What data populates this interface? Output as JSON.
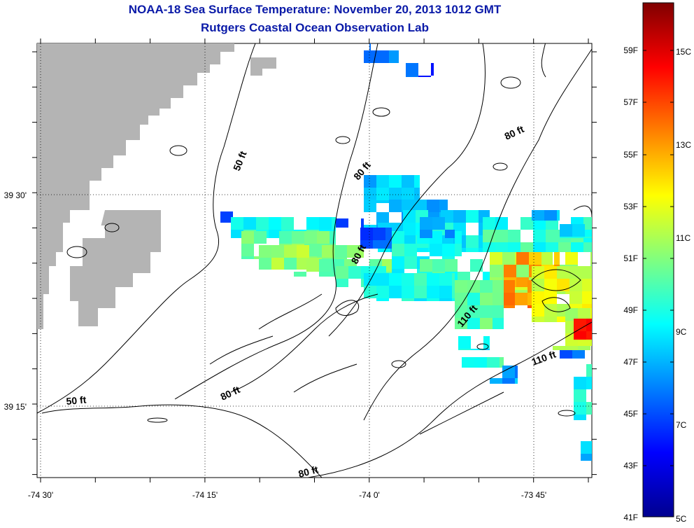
{
  "title": "NOAA-18 Sea Surface Temperature:  November 20, 2013 1012 GMT",
  "subtitle": "Rutgers Coastal Ocean Observation Lab",
  "map": {
    "land_color": "#b4b4b4",
    "lon_ticks": [
      "-74 30'",
      "-74 15'",
      "-74 0'",
      "-73 45'"
    ],
    "lat_ticks": [
      "39 30'",
      "39 15'"
    ],
    "contour_labels": [
      "50 ft",
      "80 ft",
      "80 ft",
      "80 ft",
      "110 ft",
      "110 ft",
      "50 ft",
      "80 ft",
      "80 ft"
    ]
  },
  "colorbar": {
    "colormap": "jet",
    "range_c": [
      5,
      16.1
    ],
    "fahrenheit_labels": [
      "59F",
      "57F",
      "55F",
      "53F",
      "51F",
      "49F",
      "47F",
      "45F",
      "43F",
      "41F"
    ],
    "celsius_labels": [
      "15C",
      "13C",
      "11C",
      "9C",
      "7C",
      "5C"
    ]
  }
}
